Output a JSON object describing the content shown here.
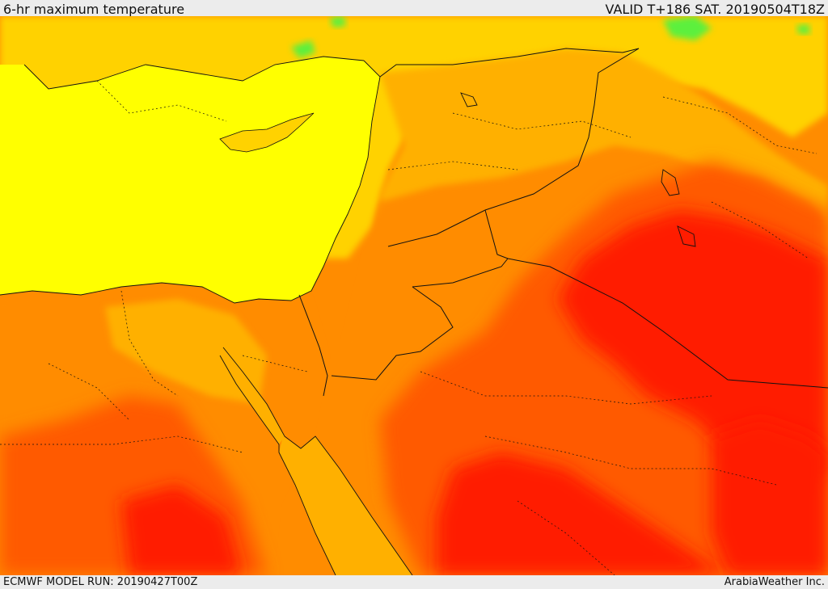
{
  "header": {
    "title": "6-hr maximum temperature",
    "valid": "VALID T+186 SAT. 20190504T18Z"
  },
  "footer": {
    "model_run": "ECMWF MODEL RUN: 20190427T00Z",
    "credit": "ArabiaWeather Inc."
  },
  "map": {
    "field": "6-hr maximum temperature",
    "colors": {
      "yellow": "#ffff00",
      "light_orange": "#ffd200",
      "amber": "#ffb000",
      "orange": "#ff8c00",
      "red_orange": "#ff5a00",
      "red": "#ff1e00",
      "green": "#5cf03c",
      "boundary": "#111111"
    }
  }
}
